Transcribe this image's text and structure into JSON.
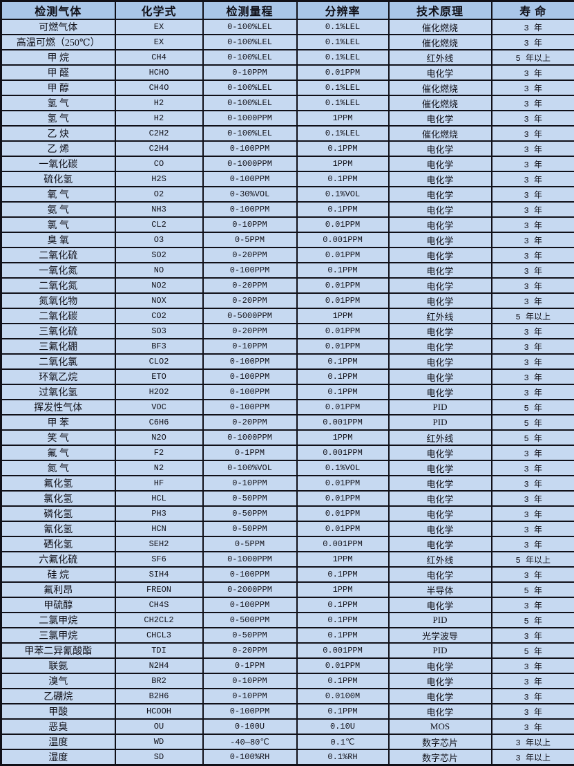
{
  "colors": {
    "header_bg": "#a9c6e8",
    "row_bg": "#c6d9f1",
    "border": "#101018",
    "text": "#101018"
  },
  "table": {
    "headers": [
      "检测气体",
      "化学式",
      "检测量程",
      "分辨率",
      "技术原理",
      "寿  命"
    ],
    "column_keys": [
      "gas",
      "formula",
      "range",
      "resolution",
      "principle",
      "lifespan"
    ],
    "rows": [
      [
        "可燃气体",
        "EX",
        "0-100%LEL",
        "0.1%LEL",
        "催化燃烧",
        "3 年"
      ],
      [
        "高温可燃（250℃）",
        "EX",
        "0-100%LEL",
        "0.1%LEL",
        "催化燃烧",
        "3 年"
      ],
      [
        "甲  烷",
        "CH4",
        "0-100%LEL",
        "0.1%LEL",
        "红外线",
        "5 年以上"
      ],
      [
        "甲  醛",
        "HCHO",
        "0-10PPM",
        "0.01PPM",
        "电化学",
        "3 年"
      ],
      [
        "甲  醇",
        "CH4O",
        "0-100%LEL",
        "0.1%LEL",
        "催化燃烧",
        "3 年"
      ],
      [
        "氢  气",
        "H2",
        "0-100%LEL",
        "0.1%LEL",
        "催化燃烧",
        "3 年"
      ],
      [
        "氢  气",
        "H2",
        "0-1000PPM",
        "1PPM",
        "电化学",
        "3 年"
      ],
      [
        "乙  炔",
        "C2H2",
        "0-100%LEL",
        "0.1%LEL",
        "催化燃烧",
        "3 年"
      ],
      [
        "乙  烯",
        "C2H4",
        "0-100PPM",
        "0.1PPM",
        "电化学",
        "3 年"
      ],
      [
        "一氧化碳",
        "CO",
        "0-1000PPM",
        "1PPM",
        "电化学",
        "3 年"
      ],
      [
        "硫化氢",
        "H2S",
        "0-100PPM",
        "0.1PPM",
        "电化学",
        "3 年"
      ],
      [
        "氧  气",
        "O2",
        "0-30%VOL",
        "0.1%VOL",
        "电化学",
        "3 年"
      ],
      [
        "氨  气",
        "NH3",
        "0-100PPM",
        "0.1PPM",
        "电化学",
        "3 年"
      ],
      [
        "氯  气",
        "CL2",
        "0-10PPM",
        "0.01PPM",
        "电化学",
        "3 年"
      ],
      [
        "臭  氧",
        "O3",
        "0-5PPM",
        "0.001PPM",
        "电化学",
        "3 年"
      ],
      [
        "二氧化硫",
        "SO2",
        "0-20PPM",
        "0.01PPM",
        "电化学",
        "3 年"
      ],
      [
        "一氧化氮",
        "NO",
        "0-100PPM",
        "0.1PPM",
        "电化学",
        "3 年"
      ],
      [
        "二氧化氮",
        "NO2",
        "0-20PPM",
        "0.01PPM",
        "电化学",
        "3 年"
      ],
      [
        "氮氧化物",
        "NOX",
        "0-20PPM",
        "0.01PPM",
        "电化学",
        "3 年"
      ],
      [
        "二氧化碳",
        "CO2",
        "0-5000PPM",
        "1PPM",
        "红外线",
        "5 年以上"
      ],
      [
        "三氧化硫",
        "SO3",
        "0-20PPM",
        "0.01PPM",
        "电化学",
        "3 年"
      ],
      [
        "三氟化硼",
        "BF3",
        "0-10PPM",
        "0.01PPM",
        "电化学",
        "3 年"
      ],
      [
        "二氧化氯",
        "CLO2",
        "0-100PPM",
        "0.1PPM",
        "电化学",
        "3 年"
      ],
      [
        "环氧乙烷",
        "ETO",
        "0-100PPM",
        "0.1PPM",
        "电化学",
        "3 年"
      ],
      [
        "过氧化氢",
        "H2O2",
        "0-100PPM",
        "0.1PPM",
        "电化学",
        "3 年"
      ],
      [
        "挥发性气体",
        "VOC",
        "0-100PPM",
        "0.01PPM",
        "PID",
        "5 年"
      ],
      [
        "甲  苯",
        "C6H6",
        "0-20PPM",
        "0.001PPM",
        "PID",
        "5 年"
      ],
      [
        "笑  气",
        "N2O",
        "0-1000PPM",
        "1PPM",
        "红外线",
        "5 年"
      ],
      [
        "氟  气",
        "F2",
        "0-1PPM",
        "0.001PPM",
        "电化学",
        "3 年"
      ],
      [
        "氮  气",
        "N2",
        "0-100%VOL",
        "0.1%VOL",
        "电化学",
        "3 年"
      ],
      [
        "氟化氢",
        "HF",
        "0-10PPM",
        "0.01PPM",
        "电化学",
        "3 年"
      ],
      [
        "氯化氢",
        "HCL",
        "0-50PPM",
        "0.01PPM",
        "电化学",
        "3 年"
      ],
      [
        "磷化氢",
        "PH3",
        "0-50PPM",
        "0.01PPM",
        "电化学",
        "3 年"
      ],
      [
        "氰化氢",
        "HCN",
        "0-50PPM",
        "0.01PPM",
        "电化学",
        "3 年"
      ],
      [
        "硒化氢",
        "SEH2",
        "0-5PPM",
        "0.001PPM",
        "电化学",
        "3 年"
      ],
      [
        "六氟化硫",
        "SF6",
        "0-1000PPM",
        "1PPM",
        "红外线",
        "5 年以上"
      ],
      [
        "硅  烷",
        "SIH4",
        "0-100PPM",
        "0.1PPM",
        "电化学",
        "3 年"
      ],
      [
        "氟利昂",
        "FREON",
        "0-2000PPM",
        "1PPM",
        "半导体",
        "5 年"
      ],
      [
        "甲硫醇",
        "CH4S",
        "0-100PPM",
        "0.1PPM",
        "电化学",
        "3 年"
      ],
      [
        "二氯甲烷",
        "CH2CL2",
        "0-500PPM",
        "0.1PPM",
        "PID",
        "5 年"
      ],
      [
        "三氯甲烷",
        "CHCL3",
        "0-50PPM",
        "0.1PPM",
        "光学波导",
        "3 年"
      ],
      [
        "甲苯二异氰酸酯",
        "TDI",
        "0-20PPM",
        "0.001PPM",
        "PID",
        "5 年"
      ],
      [
        "联氨",
        "N2H4",
        "0-1PPM",
        "0.01PPM",
        "电化学",
        "3 年"
      ],
      [
        "溴气",
        "BR2",
        "0-10PPM",
        "0.1PPM",
        "电化学",
        "3 年"
      ],
      [
        "乙硼烷",
        "B2H6",
        "0-10PPM",
        "0.0100M",
        "电化学",
        "3 年"
      ],
      [
        "甲酸",
        "HCOOH",
        "0-100PPM",
        "0.1PPM",
        "电化学",
        "3 年"
      ],
      [
        "恶臭",
        "OU",
        "0-100U",
        "0.10U",
        "MOS",
        "3 年"
      ],
      [
        "温度",
        "WD",
        "-40—80℃",
        "0.1℃",
        "数字芯片",
        "3 年以上"
      ],
      [
        "湿度",
        "SD",
        "0-100%RH",
        "0.1%RH",
        "数字芯片",
        "3 年以上"
      ]
    ]
  }
}
